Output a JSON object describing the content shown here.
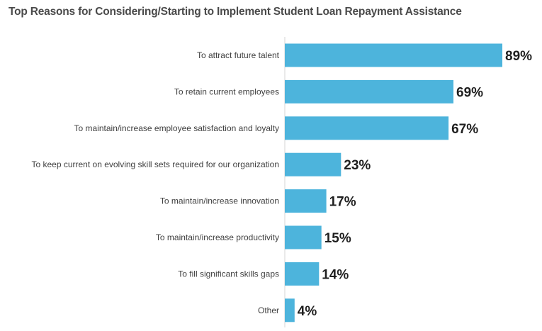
{
  "chart_data": {
    "type": "bar",
    "orientation": "horizontal",
    "title": "Top Reasons for Considering/Starting to Implement Student Loan Repayment Assistance",
    "xlabel": "",
    "ylabel": "",
    "xlim": [
      0,
      100
    ],
    "grid": false,
    "legend": "none",
    "value_suffix": "%",
    "categories": [
      "To attract future talent",
      "To retain current employees",
      "To maintain/increase employee satisfaction and loyalty",
      "To keep current on evolving skill sets required for our organization",
      "To maintain/increase innovation",
      "To maintain/increase productivity",
      "To fill significant skills gaps",
      "Other"
    ],
    "values": [
      89,
      69,
      67,
      23,
      17,
      15,
      14,
      4
    ],
    "data_labels": [
      "89%",
      "69%",
      "67%",
      "23%",
      "17%",
      "15%",
      "14%",
      "4%"
    ],
    "bar_color": "#4db4dc"
  }
}
